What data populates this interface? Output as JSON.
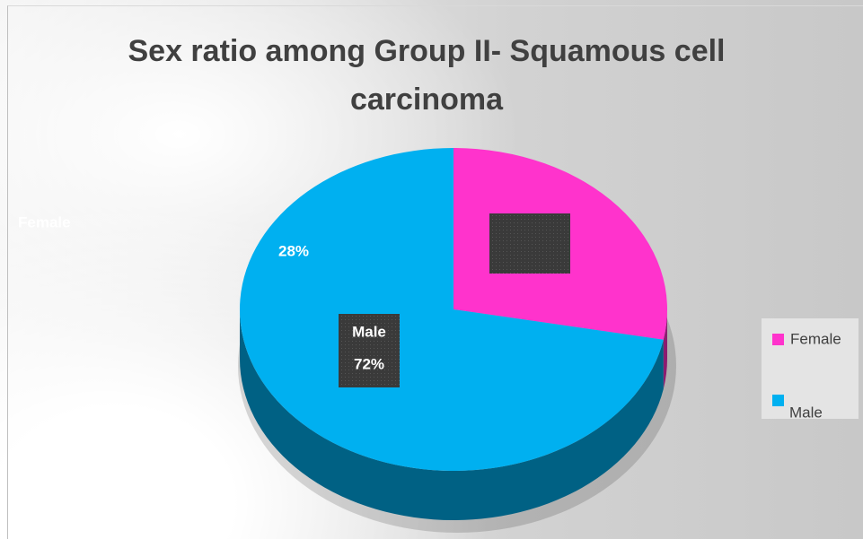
{
  "chart_data": {
    "type": "pie",
    "title": "Sex ratio among Group II- Squamous cell carcinoma",
    "categories": [
      "Female",
      "Male"
    ],
    "values": [
      28,
      72
    ],
    "value_labels": [
      "28%",
      "72%"
    ],
    "colors": [
      "#ff33cc",
      "#00b0f0"
    ],
    "legend": "right"
  }
}
